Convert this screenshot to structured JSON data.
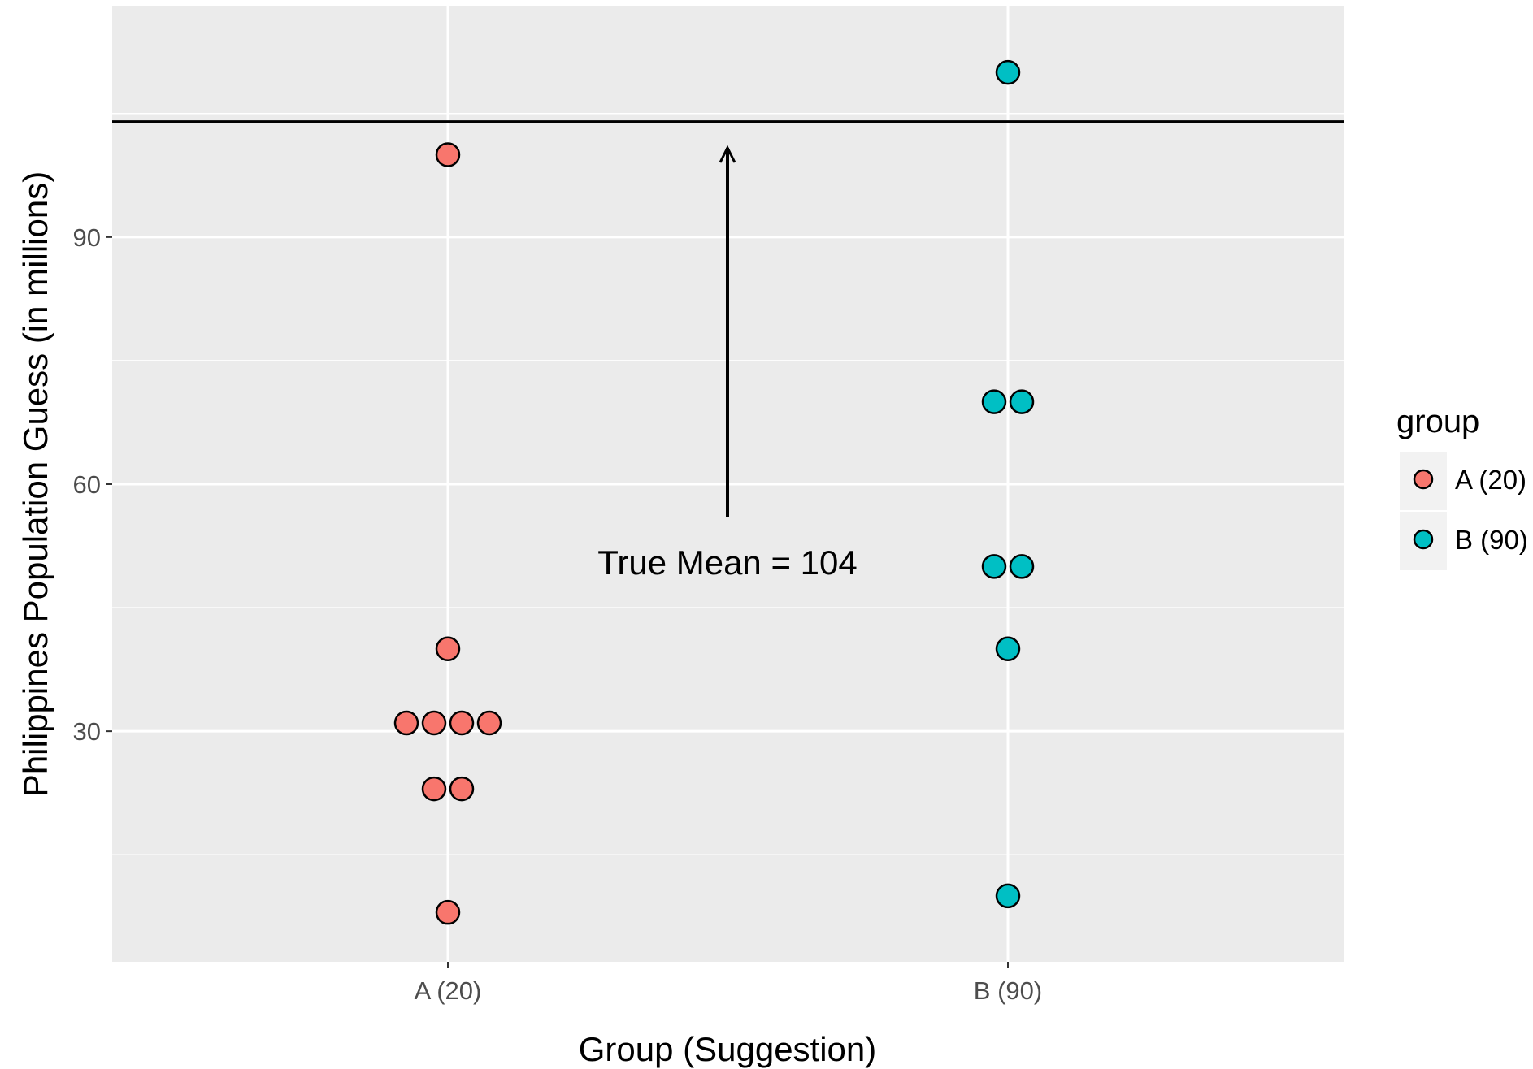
{
  "chart_data": {
    "type": "scatter",
    "subtype": "dotplot",
    "title": "",
    "xlabel": "Group (Suggestion)",
    "ylabel": "Philippines Population Guess (in millions)",
    "categories": [
      "A (20)",
      "B (90)"
    ],
    "ylim": [
      2,
      118
    ],
    "yticks": [
      30,
      60,
      90
    ],
    "grid": true,
    "legend": {
      "title": "group",
      "position": "right",
      "entries": [
        "A (20)",
        "B (90)"
      ]
    },
    "colors": {
      "A (20)": "#F8766D",
      "B (90)": "#00BFC4"
    },
    "series": [
      {
        "name": "A (20)",
        "category": "A (20)",
        "values": [
          8,
          23,
          23,
          31,
          31,
          31,
          31,
          40,
          100
        ]
      },
      {
        "name": "B (90)",
        "category": "B (90)",
        "values": [
          10,
          40,
          50,
          50,
          70,
          70,
          110
        ]
      }
    ],
    "reference_line": {
      "value": 104
    },
    "annotation": {
      "text": "True Mean = 104"
    }
  }
}
